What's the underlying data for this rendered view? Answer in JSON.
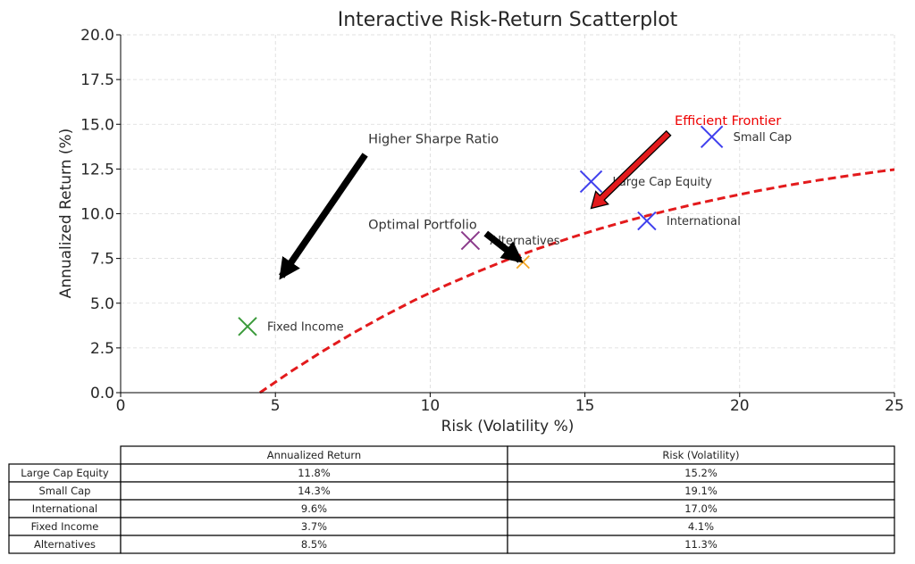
{
  "chart_data": {
    "type": "scatter",
    "title": "Interactive Risk-Return Scatterplot",
    "xlabel": "Risk (Volatility %)",
    "ylabel": "Annualized Return (%)",
    "xlim": [
      0,
      25
    ],
    "ylim": [
      0,
      20
    ],
    "xticks": [
      0,
      5,
      10,
      15,
      20,
      25
    ],
    "xtick_labels": [
      "0",
      "5",
      "10",
      "15",
      "20",
      "25"
    ],
    "yticks": [
      0,
      2.5,
      5,
      7.5,
      10,
      12.5,
      15,
      17.5,
      20
    ],
    "ytick_labels": [
      "0.0",
      "2.5",
      "5.0",
      "7.5",
      "10.0",
      "12.5",
      "15.0",
      "17.5",
      "20.0"
    ],
    "grid": true,
    "points": [
      {
        "label": "Large Cap Equity",
        "x": 15.2,
        "y": 11.8,
        "color": "#4040ee",
        "size": "large"
      },
      {
        "label": "Small Cap",
        "x": 19.1,
        "y": 14.3,
        "color": "#4040ee",
        "size": "large"
      },
      {
        "label": "International",
        "x": 17.0,
        "y": 9.6,
        "color": "#4040ee",
        "size": "medium"
      },
      {
        "label": "Fixed Income",
        "x": 4.1,
        "y": 3.7,
        "color": "#3a9a3a",
        "size": "medium"
      },
      {
        "label": "Alternatives",
        "x": 11.3,
        "y": 8.5,
        "color": "#8b3a8b",
        "size": "medium"
      }
    ],
    "optimal_point": {
      "x": 13.0,
      "y": 7.3,
      "color": "#f5a623"
    },
    "frontier": {
      "color": "#e31a1c",
      "x": [
        4.5,
        5.5,
        6.5,
        7.5,
        8.5,
        9.5,
        10.5,
        11.5,
        12.5,
        13.5,
        14.5,
        15.5,
        16.5,
        17.5,
        18.5,
        19.5,
        20.5,
        21.5,
        22.5,
        23.5,
        24.5,
        25.0
      ],
      "y": [
        0.0,
        1.18,
        2.29,
        3.32,
        4.28,
        5.17,
        5.99,
        6.74,
        7.43,
        8.06,
        8.64,
        9.17,
        9.66,
        10.11,
        10.52,
        10.9,
        11.25,
        11.57,
        11.86,
        12.12,
        12.36,
        12.47
      ]
    },
    "annotations": [
      {
        "text": "Higher Sharpe Ratio",
        "text_x": 8.0,
        "text_y": 14.2,
        "arrow_from": [
          7.9,
          13.3
        ],
        "arrow_to": [
          5.2,
          6.5
        ],
        "color": "#000000"
      },
      {
        "text": "Optimal Portfolio",
        "text_x": 8.0,
        "text_y": 9.4,
        "arrow_from": [
          11.8,
          8.9
        ],
        "arrow_to": [
          12.9,
          7.4
        ],
        "color": "#000000"
      },
      {
        "text": "Efficient Frontier",
        "text_x": 17.9,
        "text_y": 15.2,
        "arrow_from": [
          17.7,
          14.5
        ],
        "arrow_to": [
          15.2,
          10.3
        ],
        "color": "#e31a1c"
      }
    ],
    "table": {
      "columns": [
        "Annualized Return",
        "Risk (Volatility)"
      ],
      "rows": [
        {
          "name": "Large Cap Equity",
          "values": [
            "11.8%",
            "15.2%"
          ]
        },
        {
          "name": "Small Cap",
          "values": [
            "14.3%",
            "19.1%"
          ]
        },
        {
          "name": "International",
          "values": [
            "9.6%",
            "17.0%"
          ]
        },
        {
          "name": "Fixed Income",
          "values": [
            "3.7%",
            "4.1%"
          ]
        },
        {
          "name": "Alternatives",
          "values": [
            "8.5%",
            "11.3%"
          ]
        }
      ]
    }
  }
}
